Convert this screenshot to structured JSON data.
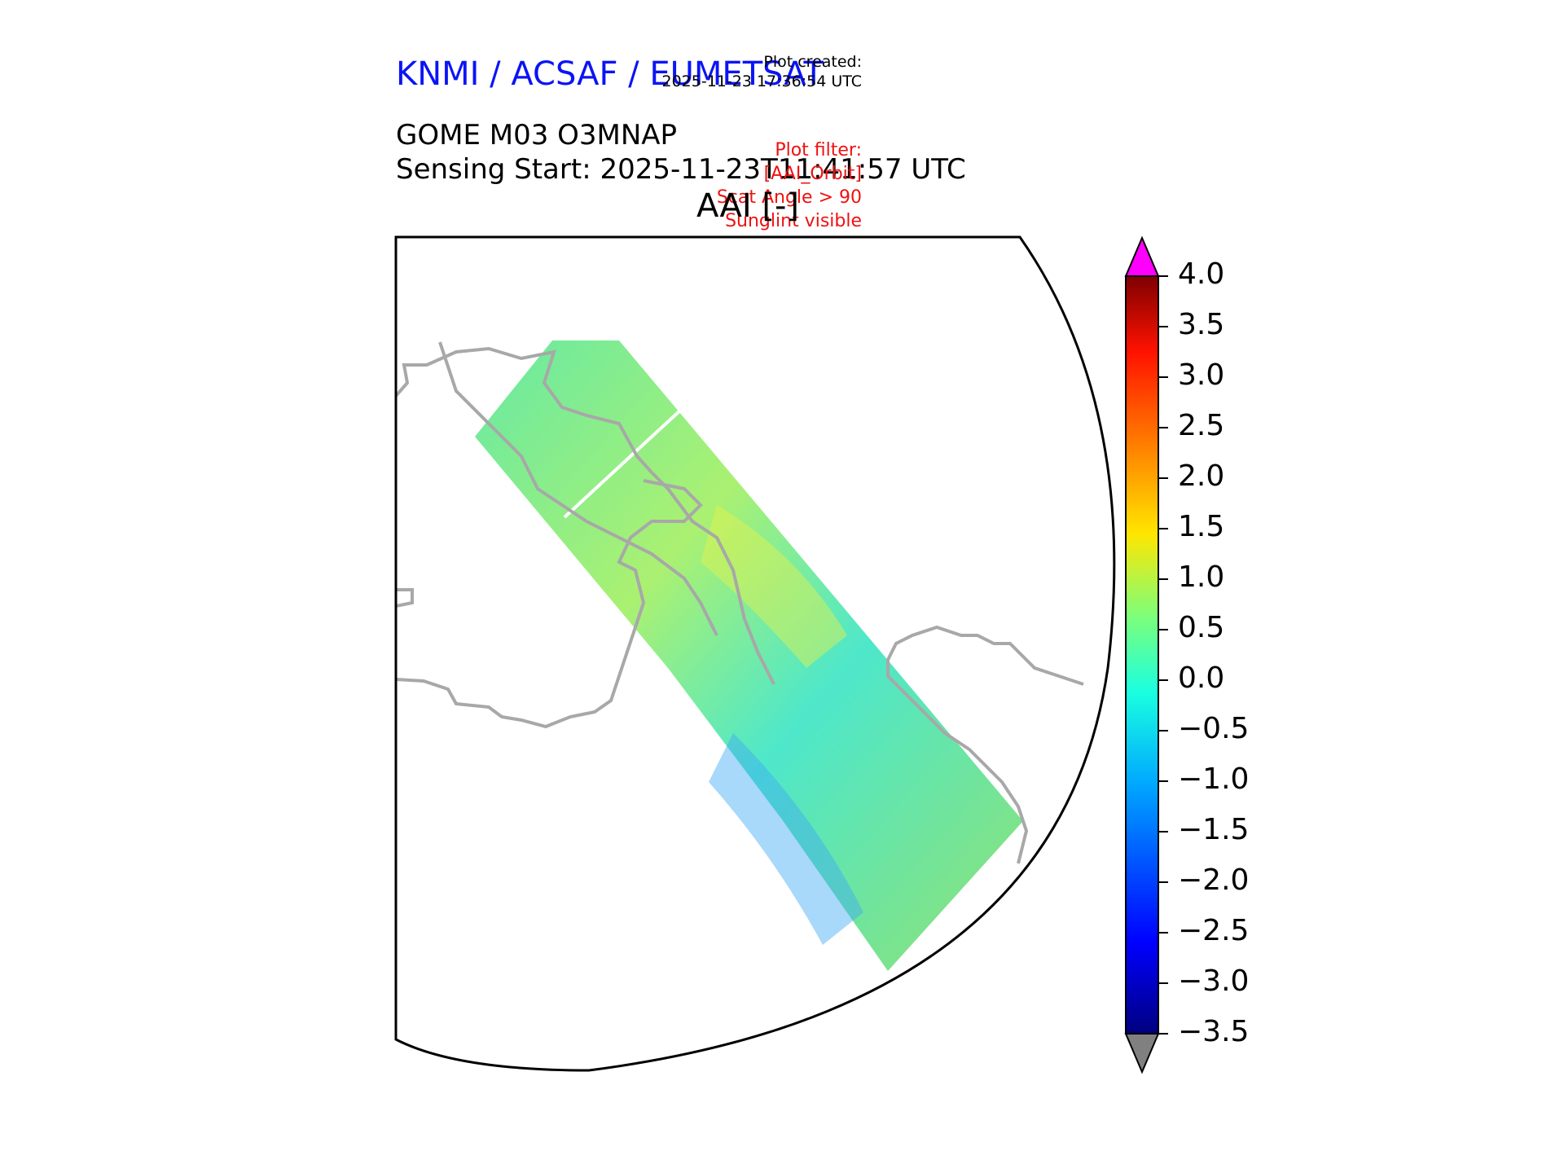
{
  "header": {
    "agency": "KNMI / ACSAF / EUMETSAT",
    "plot_created_label": "Plot created:",
    "plot_created_time": "2025-11-23 17:36:54 UTC",
    "product": "GOME M03 O3MNAP",
    "sensing_start": "Sensing Start: 2025-11-23T11:41:57 UTC",
    "variable": "AAI [-]"
  },
  "filter": {
    "lines": [
      "Plot filter:",
      "[AAI_Orbit]",
      "Scat Angle > 90",
      "Sunglint visible"
    ]
  },
  "colorbar": {
    "ticks": [
      "4.0",
      "3.5",
      "3.0",
      "2.5",
      "2.0",
      "1.5",
      "1.0",
      "0.5",
      "0.0",
      "−0.5",
      "−1.0",
      "−1.5",
      "−2.0",
      "−2.5",
      "−3.0",
      "−3.5"
    ],
    "min": -3.5,
    "max": 4.0,
    "over_color": "#ff00ff",
    "under_color": "#808080"
  },
  "colors": {
    "agency_text": "#0b14f5",
    "filter_text": "#f01010",
    "coastline": "#a8a8a8"
  }
}
